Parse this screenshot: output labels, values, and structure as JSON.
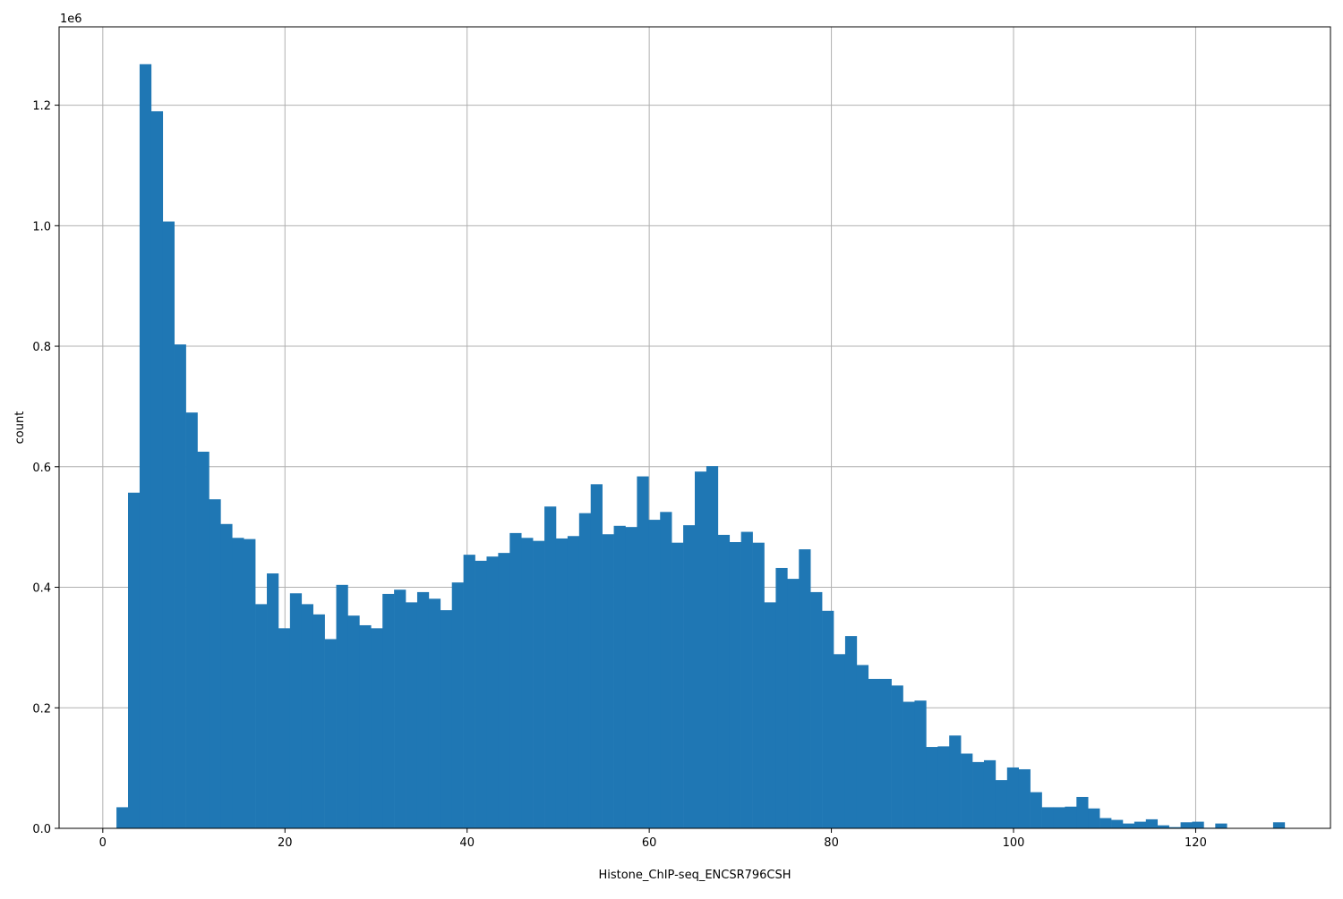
{
  "chart_data": {
    "type": "bar",
    "xlabel": "Histone_ChIP-seq_ENCSR796CSH",
    "ylabel": "count",
    "y_offset_label": "1e6",
    "xlim": [
      -4.8,
      134.8
    ],
    "ylim": [
      0,
      1330000
    ],
    "x_ticks": [
      0,
      20,
      40,
      60,
      80,
      100,
      120
    ],
    "x_tick_labels": [
      "0",
      "20",
      "40",
      "60",
      "80",
      "100",
      "120"
    ],
    "y_ticks": [
      0,
      200000,
      400000,
      600000,
      800000,
      1000000,
      1200000
    ],
    "y_tick_labels": [
      "0.0",
      "0.2",
      "0.4",
      "0.6",
      "0.8",
      "1.0",
      "1.2"
    ],
    "grid": true,
    "bar_color": "#1f77b4",
    "bin_start": 1.5,
    "bin_width": 1.27,
    "values": [
      35000,
      557000,
      1268000,
      1190000,
      1007000,
      803000,
      690000,
      625000,
      546000,
      505000,
      482000,
      480000,
      372000,
      423000,
      332000,
      390000,
      372000,
      355000,
      314000,
      404000,
      353000,
      337000,
      332000,
      389000,
      396000,
      375000,
      392000,
      381000,
      362000,
      408000,
      454000,
      444000,
      451000,
      457000,
      490000,
      482000,
      477000,
      534000,
      481000,
      485000,
      523000,
      571000,
      488000,
      502000,
      500000,
      584000,
      512000,
      525000,
      474000,
      503000,
      592000,
      601000,
      487000,
      475000,
      492000,
      474000,
      375000,
      432000,
      414000,
      463000,
      392000,
      361000,
      289000,
      319000,
      271000,
      248000,
      248000,
      237000,
      210000,
      212000,
      135000,
      136000,
      154000,
      124000,
      110000,
      113000,
      80000,
      101000,
      98000,
      60000,
      35000,
      35000,
      36000,
      52000,
      33000,
      17000,
      14000,
      8000,
      11000,
      15000,
      5000,
      2000,
      10000,
      11000,
      1000,
      8000,
      0,
      0,
      0,
      0,
      10000
    ]
  }
}
